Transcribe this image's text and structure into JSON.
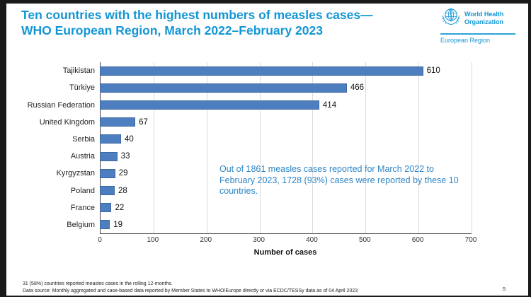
{
  "header": {
    "title_line1": "Ten countries with the highest numbers of measles cases—",
    "title_line2": "WHO European Region, March 2022–February 2023",
    "accent_color": "#1296d4",
    "logo": {
      "emblem_icon": "who-emblem-icon",
      "org_line1": "World Health",
      "org_line2": "Organization",
      "region": "European Region"
    }
  },
  "chart_data": {
    "type": "bar",
    "orientation": "horizontal",
    "categories": [
      "Tajikistan",
      "Türkiye",
      "Russian Federation",
      "United Kingdom",
      "Serbia",
      "Austria",
      "Kyrgyzstan",
      "Poland",
      "France",
      "Belgium"
    ],
    "values": [
      610,
      466,
      414,
      67,
      40,
      33,
      29,
      28,
      22,
      19
    ],
    "xlabel": "Number of cases",
    "xlim": [
      0,
      700
    ],
    "xticks": [
      0,
      100,
      200,
      300,
      400,
      500,
      600,
      700
    ],
    "grid": true,
    "bar_color": "#4d7ebf",
    "annotation": "Out of 1861 measles cases reported for March 2022 to February 2023, 1728 (93%) cases were reported by these 10 countries."
  },
  "footer": {
    "note": "31 (58%) countries reported measles cases in the rolling 12-months.",
    "source": "Data source: Monthly aggregated and case-based data reported by Member States to WHO/Europe directly or via ECDC/TESSy data as of 04 April 2023",
    "page_number": "5"
  }
}
